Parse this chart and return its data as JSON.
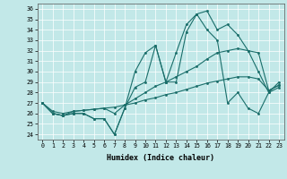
{
  "xlabel": "Humidex (Indice chaleur)",
  "xlim": [
    -0.5,
    23.5
  ],
  "ylim": [
    23.5,
    36.5
  ],
  "yticks": [
    24,
    25,
    26,
    27,
    28,
    29,
    30,
    31,
    32,
    33,
    34,
    35,
    36
  ],
  "xticks": [
    0,
    1,
    2,
    3,
    4,
    5,
    6,
    7,
    8,
    9,
    10,
    11,
    12,
    13,
    14,
    15,
    16,
    17,
    18,
    19,
    20,
    21,
    22,
    23
  ],
  "bg_color": "#c2e8e8",
  "line_color": "#1a6e6a",
  "lines": [
    [
      27,
      26,
      25.8,
      26,
      26,
      25.5,
      25.5,
      24.0,
      26.5,
      30.0,
      31.8,
      32.5,
      29.0,
      31.8,
      34.5,
      35.5,
      35.8,
      34.0,
      34.5,
      33.5,
      32.0,
      30.0,
      28.0,
      29.0
    ],
    [
      27,
      26,
      25.8,
      26,
      26,
      25.5,
      25.5,
      24.0,
      26.5,
      28.5,
      29.0,
      32.5,
      29.0,
      29.0,
      33.8,
      35.5,
      34.0,
      33.0,
      27.0,
      28.0,
      26.5,
      26.0,
      28.0,
      28.5
    ],
    [
      27,
      26,
      25.8,
      26.2,
      26.3,
      26.4,
      26.5,
      26.0,
      26.8,
      27.4,
      28.0,
      28.6,
      29.0,
      29.5,
      30.0,
      30.5,
      31.2,
      31.8,
      32.0,
      32.2,
      32.0,
      31.8,
      28.2,
      28.7
    ],
    [
      27,
      26.2,
      26.0,
      26.2,
      26.3,
      26.4,
      26.5,
      26.6,
      26.8,
      27.0,
      27.3,
      27.5,
      27.8,
      28.0,
      28.3,
      28.6,
      28.9,
      29.1,
      29.3,
      29.5,
      29.5,
      29.3,
      28.2,
      28.7
    ]
  ]
}
